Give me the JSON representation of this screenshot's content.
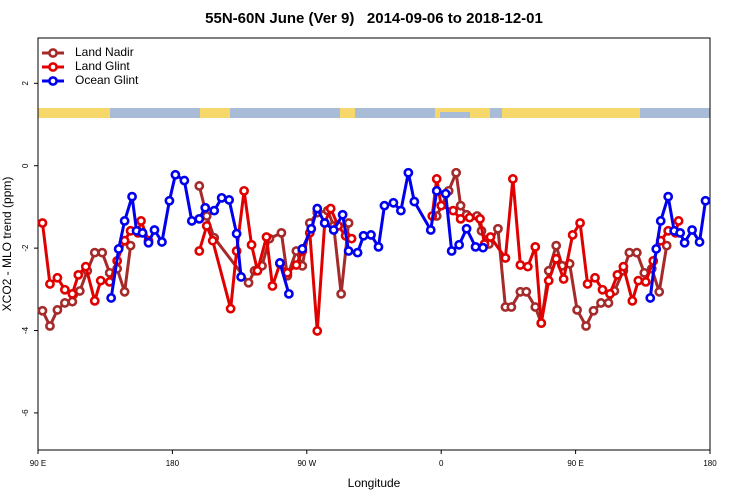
{
  "chart_data": {
    "type": "line",
    "title": "55N-60N June (Ver 9)   2014-09-06 to 2018-12-01",
    "x_label": "Longitude",
    "y_label": "XCO2 - MLO trend (ppm)",
    "xlim": [
      90,
      540
    ],
    "ylim": [
      -6.9,
      3.1
    ],
    "xticks": [
      {
        "value": 90,
        "label": "90 E"
      },
      180,
      {
        "value": 270,
        "label": "90 W"
      },
      {
        "value": 360,
        "label": "0"
      },
      {
        "value": 450,
        "label": "90 E"
      },
      {
        "value": 540,
        "label": "180"
      }
    ],
    "yticks": [
      -6,
      -4,
      -2,
      0,
      2
    ],
    "legend": "top-left",
    "series": [
      {
        "name": "Land Nadir",
        "color": "#a52a2a",
        "x": [
          93,
          98,
          103,
          108,
          113,
          118,
          123,
          128,
          133,
          138,
          143,
          148,
          152,
          175,
          198,
          203,
          208,
          231,
          235,
          240,
          245,
          253,
          257,
          263,
          267,
          272,
          277,
          284,
          288,
          293,
          298,
          330,
          357,
          365,
          370,
          373,
          377,
          384,
          387,
          392,
          398,
          403,
          407,
          413,
          417,
          423,
          427,
          432,
          437,
          441,
          446,
          451,
          457,
          462,
          467,
          472,
          476,
          482,
          486,
          491,
          496,
          501,
          506,
          511
        ],
        "values": [
          -3.52,
          -3.89,
          -3.5,
          -3.33,
          -3.3,
          -3.04,
          -2.55,
          -2.11,
          -2.11,
          -2.6,
          -2.5,
          -3.06,
          -1.94,
          null,
          -0.49,
          -1.22,
          -1.75,
          -2.84,
          -2.55,
          -2.43,
          -1.77,
          -1.63,
          -2.67,
          -2.07,
          -2.43,
          -1.39,
          -1.14,
          -1.09,
          -1.46,
          -3.11,
          -1.39,
          null,
          -1.22,
          -0.61,
          -0.17,
          -0.97,
          -1.19,
          -1.22,
          -1.58,
          -1.9,
          -1.53,
          -3.43,
          -3.43,
          -3.06,
          -3.06,
          -3.43,
          -3.82,
          -2.55,
          -1.94,
          -2.43,
          -2.38,
          -3.5,
          -3.89,
          -3.52,
          -3.33,
          -3.33,
          -3.04,
          -2.55,
          -2.11,
          -2.11,
          -2.6,
          -2.5,
          -3.06,
          -1.94
        ]
      },
      {
        "name": "Land Glint",
        "color": "#e00000",
        "x": [
          93,
          98,
          103,
          108,
          113,
          117,
          122,
          128,
          132,
          138,
          143,
          148,
          152,
          157,
          159,
          164,
          180,
          198,
          203,
          207,
          219,
          223,
          228,
          233,
          237,
          243,
          247,
          252,
          257,
          263,
          267,
          272,
          277,
          282,
          286,
          291,
          296,
          300,
          330,
          354,
          357,
          360,
          368,
          373,
          379,
          386,
          389,
          393,
          403,
          408,
          413,
          418,
          423,
          427,
          432,
          437,
          442,
          448,
          453,
          458,
          463,
          468,
          473,
          478,
          482,
          488,
          492,
          497,
          502,
          507,
          512,
          517,
          519
        ],
        "values": [
          -1.39,
          -2.87,
          -2.72,
          -3.01,
          -3.11,
          -2.65,
          -2.45,
          -3.28,
          -2.79,
          -2.82,
          -2.31,
          -1.82,
          -1.58,
          -1.63,
          -1.34,
          -1.82,
          null,
          -2.07,
          -1.46,
          -1.82,
          -3.47,
          -2.07,
          -0.61,
          -1.92,
          -2.55,
          -1.73,
          -2.92,
          -2.38,
          -2.6,
          -2.41,
          -2.07,
          -1.63,
          -4.01,
          -1.39,
          -1.04,
          -1.46,
          -1.7,
          -1.77,
          null,
          -1.22,
          -0.32,
          -0.97,
          -1.09,
          -1.29,
          -1.26,
          -1.29,
          -1.9,
          -1.73,
          -2.24,
          -0.32,
          -2.41,
          -2.45,
          -1.97,
          -3.82,
          -2.79,
          -2.26,
          -2.75,
          -1.68,
          -1.39,
          -2.87,
          -2.72,
          -3.01,
          -3.11,
          -2.65,
          -2.45,
          -3.28,
          -2.79,
          -2.82,
          -2.31,
          -1.82,
          -1.58,
          -1.63,
          -1.34
        ]
      },
      {
        "name": "Ocean Glint",
        "color": "#0000ee",
        "x": [
          139,
          144,
          148,
          153,
          156,
          160,
          164,
          168,
          173,
          178,
          182,
          188,
          193,
          198,
          202,
          208,
          213,
          218,
          223,
          226,
          240,
          252,
          258,
          262,
          267,
          273,
          277,
          282,
          288,
          294,
          298,
          304,
          308,
          313,
          318,
          322,
          328,
          333,
          338,
          342,
          353,
          357,
          363,
          367,
          372,
          377,
          383,
          388,
          440,
          500,
          504,
          507,
          512,
          516,
          520,
          523,
          528,
          533,
          537
        ],
        "values": [
          -3.21,
          -2.02,
          -1.34,
          -0.75,
          -1.58,
          -1.63,
          -1.87,
          -1.56,
          -1.85,
          -0.85,
          -0.22,
          -0.36,
          -1.34,
          -1.29,
          -1.02,
          -1.09,
          -0.78,
          -0.83,
          -1.65,
          -2.7,
          null,
          -2.36,
          -3.11,
          null,
          -2.02,
          -1.53,
          -1.04,
          -1.39,
          -1.56,
          -1.19,
          -2.07,
          -2.11,
          -1.7,
          -1.68,
          -1.97,
          -0.97,
          -0.9,
          -1.09,
          -0.17,
          -0.87,
          -1.56,
          -0.61,
          -0.68,
          -2.07,
          -1.92,
          -1.53,
          -1.97,
          -1.99,
          null,
          -3.21,
          -2.02,
          -1.34,
          -0.75,
          -1.58,
          -1.63,
          -1.87,
          -1.56,
          -1.85,
          -0.85
        ]
      }
    ]
  }
}
